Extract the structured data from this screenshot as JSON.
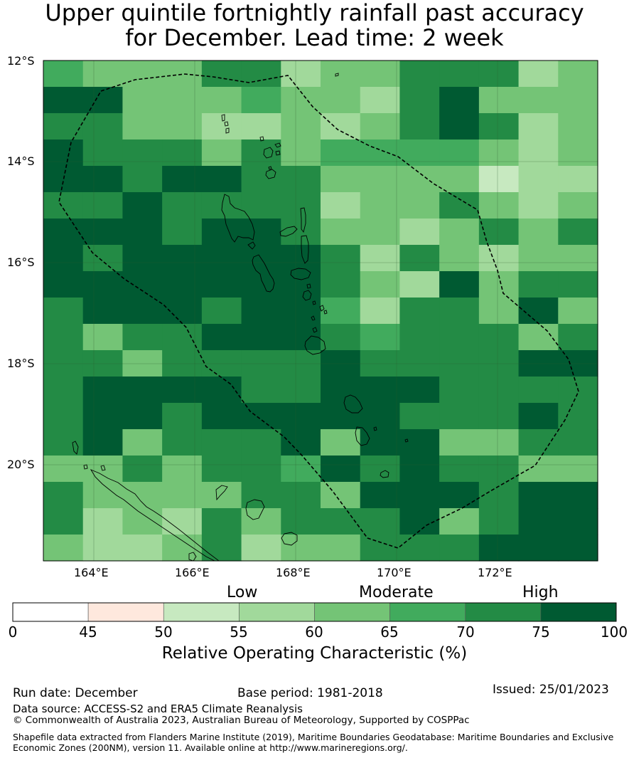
{
  "title_line1": "Upper quintile fortnightly rainfall past accuracy",
  "title_line2": "for December. Lead time: 2 week",
  "map": {
    "lat_labels": [
      "12°S",
      "14°S",
      "16°S",
      "18°S",
      "20°S"
    ],
    "lon_labels": [
      "164°E",
      "166°E",
      "168°E",
      "170°E",
      "172°E"
    ],
    "grid_values": [
      [
        65,
        60,
        60,
        60,
        70,
        70,
        55,
        60,
        60,
        70,
        70,
        70,
        55,
        60
      ],
      [
        75,
        75,
        60,
        60,
        60,
        65,
        60,
        60,
        55,
        70,
        75,
        60,
        60,
        60
      ],
      [
        70,
        70,
        60,
        60,
        55,
        55,
        60,
        55,
        60,
        70,
        75,
        70,
        55,
        60
      ],
      [
        75,
        70,
        70,
        70,
        60,
        70,
        60,
        65,
        65,
        65,
        65,
        60,
        55,
        60
      ],
      [
        75,
        75,
        70,
        75,
        75,
        70,
        70,
        60,
        60,
        60,
        60,
        50,
        55,
        55
      ],
      [
        70,
        70,
        75,
        70,
        70,
        70,
        70,
        55,
        60,
        60,
        70,
        60,
        55,
        60
      ],
      [
        75,
        75,
        80,
        70,
        80,
        75,
        70,
        60,
        60,
        55,
        60,
        70,
        60,
        70
      ],
      [
        75,
        70,
        75,
        75,
        80,
        75,
        75,
        70,
        55,
        70,
        60,
        55,
        60,
        60
      ],
      [
        75,
        80,
        75,
        75,
        75,
        75,
        75,
        70,
        60,
        55,
        75,
        60,
        70,
        70
      ],
      [
        70,
        75,
        75,
        80,
        70,
        80,
        75,
        65,
        55,
        70,
        70,
        60,
        75,
        60
      ],
      [
        70,
        60,
        70,
        70,
        75,
        75,
        75,
        70,
        65,
        70,
        70,
        70,
        60,
        70
      ],
      [
        70,
        70,
        60,
        70,
        70,
        70,
        70,
        80,
        70,
        70,
        70,
        70,
        75,
        75
      ],
      [
        70,
        75,
        75,
        75,
        80,
        70,
        70,
        75,
        75,
        75,
        70,
        70,
        70,
        70
      ],
      [
        70,
        75,
        75,
        70,
        75,
        80,
        75,
        80,
        80,
        70,
        70,
        70,
        75,
        70
      ],
      [
        70,
        75,
        60,
        70,
        70,
        70,
        75,
        60,
        75,
        75,
        60,
        60,
        70,
        70
      ],
      [
        60,
        60,
        70,
        60,
        70,
        70,
        65,
        75,
        70,
        75,
        70,
        70,
        60,
        60
      ],
      [
        70,
        60,
        60,
        60,
        60,
        70,
        70,
        60,
        75,
        80,
        75,
        70,
        75,
        75
      ],
      [
        70,
        55,
        60,
        55,
        70,
        60,
        70,
        70,
        70,
        75,
        60,
        70,
        80,
        75
      ],
      [
        60,
        55,
        55,
        60,
        70,
        55,
        60,
        60,
        70,
        70,
        70,
        75,
        80,
        80
      ]
    ]
  },
  "colorbar": {
    "low_label": "Low",
    "moderate_label": "Moderate",
    "high_label": "High",
    "ticks": [
      "0",
      "45",
      "50",
      "55",
      "60",
      "65",
      "70",
      "75",
      "100"
    ],
    "colors": [
      "#ffffff",
      "#fee8dd",
      "#c7e9c0",
      "#a1d99b",
      "#74c476",
      "#41ab5d",
      "#238b45",
      "#005a32"
    ],
    "title": "Relative Operating Characteristic (%)"
  },
  "footer": {
    "run_date": "Run date: December",
    "base_period": "Base period: 1981-2018",
    "issued": "Issued: 25/01/2023",
    "data_source": "Data source: ACCESS-S2 and ERA5 Climate Reanalysis",
    "copyright": "© Commonwealth of Australia 2023, Australian Bureau of Meteorology, Supported by COSPPac",
    "shapefile": "Shapefile data extracted from Flanders Marine Institute (2019), Maritime Boundaries Geodatabase: Maritime Boundaries and Exclusive Economic Zones (200NM), version 11. Available online at http://www.marineregions.org/."
  }
}
